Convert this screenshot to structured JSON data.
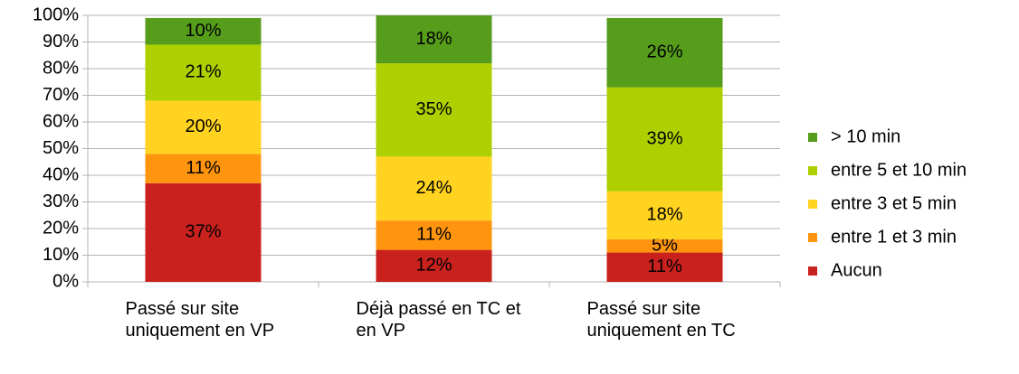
{
  "chart_data": {
    "type": "stacked_bar",
    "categories": [
      "Passé sur site uniquement en VP",
      "Déjà passé en TC et en VP",
      "Passé sur site uniquement en TC"
    ],
    "series": [
      {
        "name": "Aucun",
        "color": "#c9211e",
        "values": [
          37,
          12,
          11
        ],
        "value_labels": [
          "37%",
          "12%",
          "11%"
        ]
      },
      {
        "name": "entre 1 et 3 min",
        "color": "#ff950e",
        "values": [
          11,
          11,
          5
        ],
        "value_labels": [
          "11%",
          "11%",
          "5%"
        ]
      },
      {
        "name": "entre 3 et 5 min",
        "color": "#ffd320",
        "values": [
          20,
          24,
          18
        ],
        "value_labels": [
          "20%",
          "24%",
          "18%"
        ]
      },
      {
        "name": "entre 5 et 10 min",
        "color": "#aecf00",
        "values": [
          21,
          35,
          39
        ],
        "value_labels": [
          "21%",
          "35%",
          "39%"
        ]
      },
      {
        "name": "> 10 min",
        "color": "#579d1c",
        "values": [
          10,
          18,
          26
        ],
        "value_labels": [
          "10%",
          "18%",
          "26%"
        ]
      }
    ],
    "ylim": [
      0,
      100
    ],
    "yticks": [
      {
        "value": 0,
        "label": "0%"
      },
      {
        "value": 10,
        "label": "10%"
      },
      {
        "value": 20,
        "label": "20%"
      },
      {
        "value": 30,
        "label": "30%"
      },
      {
        "value": 40,
        "label": "40%"
      },
      {
        "value": 50,
        "label": "50%"
      },
      {
        "value": 60,
        "label": "60%"
      },
      {
        "value": 70,
        "label": "70%"
      },
      {
        "value": 80,
        "label": "80%"
      },
      {
        "value": 90,
        "label": "90%"
      },
      {
        "value": 100,
        "label": "100%"
      }
    ],
    "grid": true,
    "legend": "right"
  }
}
